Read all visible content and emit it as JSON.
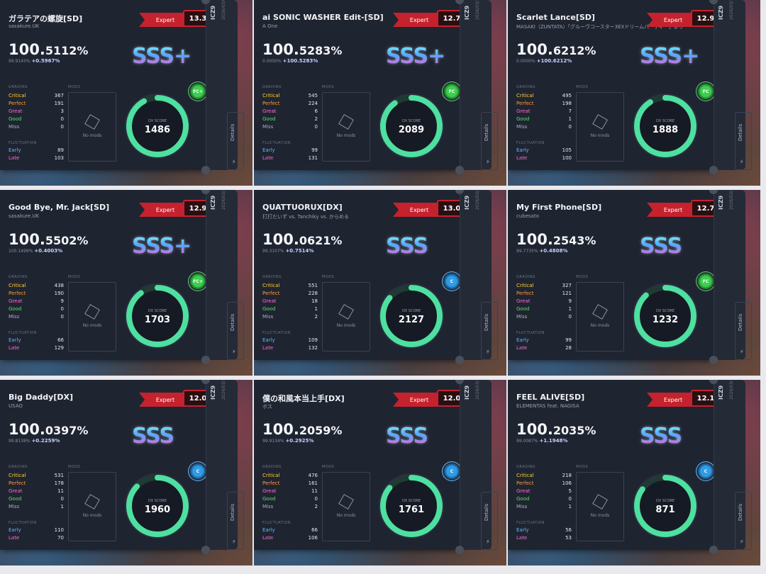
{
  "labels": {
    "grading": "GRADING",
    "mods": "MODS",
    "no_mods": "No mods",
    "fluctuation": "FLUCTUATION",
    "dx_score": "DX SCORE",
    "details": "Details",
    "critical": "Critical",
    "perfect": "Perfect",
    "great": "Great",
    "good": "Good",
    "miss": "Miss",
    "early": "Early",
    "late": "Late",
    "version": "ICZ9"
  },
  "colors": {
    "expert": "#c5222e",
    "ring": "#4ee0a0",
    "fc_badge": "#3bd04e",
    "c_badge": "#2f9de6"
  },
  "cards": [
    {
      "title": "ガラテアの螺旋[SD]",
      "artist": "sasakure.UK",
      "difficulty": "Expert",
      "level": "13.3",
      "pct_int": "100.",
      "pct_frac": "5112%",
      "sub_pb": "99.9145%",
      "sub_diff": "+0.5967%",
      "rank": "SSS+",
      "badge": "FC+",
      "badge_type": "fc",
      "critical": "367",
      "perfect": "191",
      "great": "3",
      "good": "0",
      "miss": "0",
      "early": "89",
      "late": "103",
      "dx_score": "1486",
      "ring_fraction": 0.92,
      "date": "2026/03/06"
    },
    {
      "title": "ai SONIC WASHER Edit-[SD]",
      "artist": "A One",
      "difficulty": "Expert",
      "level": "12.7",
      "pct_int": "100.",
      "pct_frac": "5283%",
      "sub_pb": "0.0000%",
      "sub_diff": "+100.5283%",
      "rank": "SSS+",
      "badge": "FC",
      "badge_type": "fc",
      "critical": "545",
      "perfect": "224",
      "great": "6",
      "good": "2",
      "miss": "0",
      "early": "99",
      "late": "131",
      "dx_score": "2089",
      "ring_fraction": 0.9,
      "date": "2026/03/13"
    },
    {
      "title": "Scarlet Lance[SD]",
      "artist": "MASAKI（ZUNTATA）「グルーヴコースター3EXドリームパーティー」より",
      "difficulty": "Expert",
      "level": "12.9",
      "pct_int": "100.",
      "pct_frac": "6212%",
      "sub_pb": "0.0000%",
      "sub_diff": "+100.6212%",
      "rank": "SSS+",
      "badge": "FC",
      "badge_type": "fc",
      "critical": "495",
      "perfect": "198",
      "great": "7",
      "good": "1",
      "miss": "0",
      "early": "105",
      "late": "100",
      "dx_score": "1888",
      "ring_fraction": 0.91,
      "date": "2026/03/13"
    },
    {
      "title": "Good Bye, Mr. Jack[SD]",
      "artist": "sasakure.UK",
      "difficulty": "Expert",
      "level": "12.9",
      "pct_int": "100.",
      "pct_frac": "5502%",
      "sub_pb": "100.1499%",
      "sub_diff": "+0.4003%",
      "rank": "SSS+",
      "badge": "FC+",
      "badge_type": "fc",
      "critical": "438",
      "perfect": "190",
      "great": "9",
      "good": "0",
      "miss": "0",
      "early": "66",
      "late": "129",
      "dx_score": "1703",
      "ring_fraction": 0.9,
      "date": "2026/03/13"
    },
    {
      "title": "QUATTUORUX[DX]",
      "artist": "打打だいず vs. Tanchiky vs. からめる",
      "difficulty": "Expert",
      "level": "13.0",
      "pct_int": "100.",
      "pct_frac": "0621%",
      "sub_pb": "99.3107%",
      "sub_diff": "+0.7514%",
      "rank": "SSS",
      "badge": "C",
      "badge_type": "c",
      "critical": "551",
      "perfect": "228",
      "great": "18",
      "good": "1",
      "miss": "2",
      "early": "109",
      "late": "132",
      "dx_score": "2127",
      "ring_fraction": 0.86,
      "date": "2026/03/13"
    },
    {
      "title": "My First Phone[SD]",
      "artist": "cubesato",
      "difficulty": "Expert",
      "level": "12.7",
      "pct_int": "100.",
      "pct_frac": "2543%",
      "sub_pb": "99.7735%",
      "sub_diff": "+0.4808%",
      "rank": "SSS",
      "badge": "FC",
      "badge_type": "fc",
      "critical": "327",
      "perfect": "121",
      "great": "9",
      "good": "1",
      "miss": "0",
      "early": "99",
      "late": "28",
      "dx_score": "1232",
      "ring_fraction": 0.88,
      "date": "2026/03/13"
    },
    {
      "title": "Big Daddy[DX]",
      "artist": "USAO",
      "difficulty": "Expert",
      "level": "12.0",
      "pct_int": "100.",
      "pct_frac": "0397%",
      "sub_pb": "99.8138%",
      "sub_diff": "+0.2259%",
      "rank": "SSS",
      "badge": "C",
      "badge_type": "c",
      "critical": "531",
      "perfect": "178",
      "great": "11",
      "good": "0",
      "miss": "1",
      "early": "110",
      "late": "70",
      "dx_score": "1960",
      "ring_fraction": 0.87,
      "date": "2026/03/13"
    },
    {
      "title": "僕の和風本当上手[DX]",
      "artist": "ボス",
      "difficulty": "Expert",
      "level": "12.0",
      "pct_int": "100.",
      "pct_frac": "2059%",
      "sub_pb": "99.9134%",
      "sub_diff": "+0.2925%",
      "rank": "SSS",
      "badge": "C",
      "badge_type": "c",
      "critical": "476",
      "perfect": "161",
      "great": "11",
      "good": "0",
      "miss": "2",
      "early": "66",
      "late": "106",
      "dx_score": "1761",
      "ring_fraction": 0.86,
      "date": "2026/03/13"
    },
    {
      "title": "FEEL ALIVE[SD]",
      "artist": "ELEMENTAS feat. NAGISA",
      "difficulty": "Expert",
      "level": "12.1",
      "pct_int": "100.",
      "pct_frac": "2035%",
      "sub_pb": "99.0087%",
      "sub_diff": "+1.1948%",
      "rank": "SSS",
      "badge": "C",
      "badge_type": "c",
      "critical": "218",
      "perfect": "106",
      "great": "5",
      "good": "0",
      "miss": "1",
      "early": "56",
      "late": "53",
      "dx_score": "871",
      "ring_fraction": 0.85,
      "date": "2026/03/13"
    }
  ]
}
